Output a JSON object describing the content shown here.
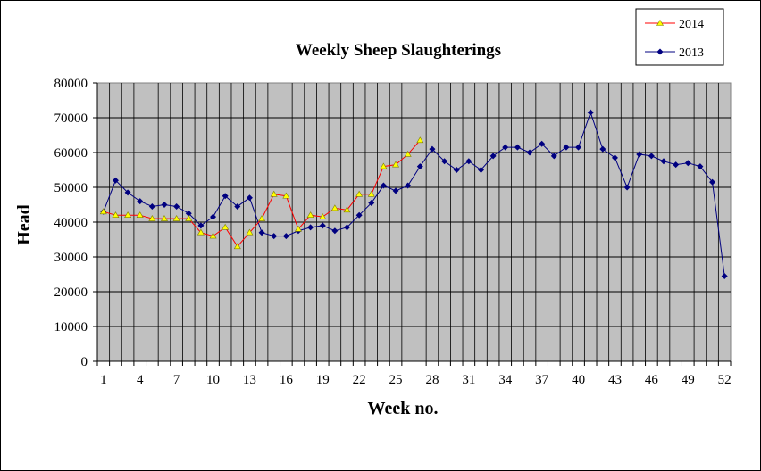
{
  "chart_data": {
    "type": "line",
    "title": "Weekly Sheep Slaughterings",
    "xlabel": "Week no.",
    "ylabel": "Head",
    "xlim": [
      1,
      52
    ],
    "ylim": [
      0,
      80000
    ],
    "ytick_labels": [
      "0",
      "10000",
      "20000",
      "30000",
      "40000",
      "50000",
      "60000",
      "70000",
      "80000"
    ],
    "xtick_labels": [
      "1",
      "4",
      "7",
      "10",
      "13",
      "16",
      "19",
      "22",
      "25",
      "28",
      "31",
      "34",
      "37",
      "40",
      "43",
      "46",
      "49",
      "52"
    ],
    "grid": true,
    "legend_position": "top-right",
    "series": [
      {
        "name": "2014",
        "color": "#ff0000",
        "marker": "triangle",
        "marker_color": "#ffff00",
        "x": [
          1,
          2,
          3,
          4,
          5,
          6,
          7,
          8,
          9,
          10,
          11,
          12,
          13,
          14,
          15,
          16,
          17,
          18,
          19,
          20,
          21,
          22,
          23,
          24,
          25,
          26,
          27
        ],
        "values": [
          43000,
          42000,
          42000,
          42000,
          41000,
          41000,
          41000,
          41000,
          37000,
          36000,
          38500,
          33000,
          37000,
          41000,
          48000,
          47500,
          38000,
          42000,
          41500,
          44000,
          43500,
          48000,
          48000,
          56000,
          56500,
          59500,
          63500
        ]
      },
      {
        "name": "2013",
        "color": "#000080",
        "marker": "diamond",
        "marker_color": "#000080",
        "x": [
          1,
          2,
          3,
          4,
          5,
          6,
          7,
          8,
          9,
          10,
          11,
          12,
          13,
          14,
          15,
          16,
          17,
          18,
          19,
          20,
          21,
          22,
          23,
          24,
          25,
          26,
          27,
          28,
          29,
          30,
          31,
          32,
          33,
          34,
          35,
          36,
          37,
          38,
          39,
          40,
          41,
          42,
          43,
          44,
          45,
          46,
          47,
          48,
          49,
          50,
          51,
          52
        ],
        "values": [
          43000,
          52000,
          48500,
          46000,
          44500,
          45000,
          44500,
          42500,
          39000,
          41500,
          47500,
          44500,
          47000,
          37000,
          36000,
          36000,
          37500,
          38500,
          39000,
          37500,
          38500,
          42000,
          45500,
          50500,
          49000,
          50500,
          56000,
          61000,
          57500,
          55000,
          57500,
          55000,
          59000,
          61500,
          61500,
          60000,
          62500,
          59000,
          61500,
          61500,
          71500,
          61000,
          58500,
          50000,
          59500,
          59000,
          57500,
          56500,
          57000,
          56000,
          51500,
          24500
        ]
      }
    ]
  }
}
